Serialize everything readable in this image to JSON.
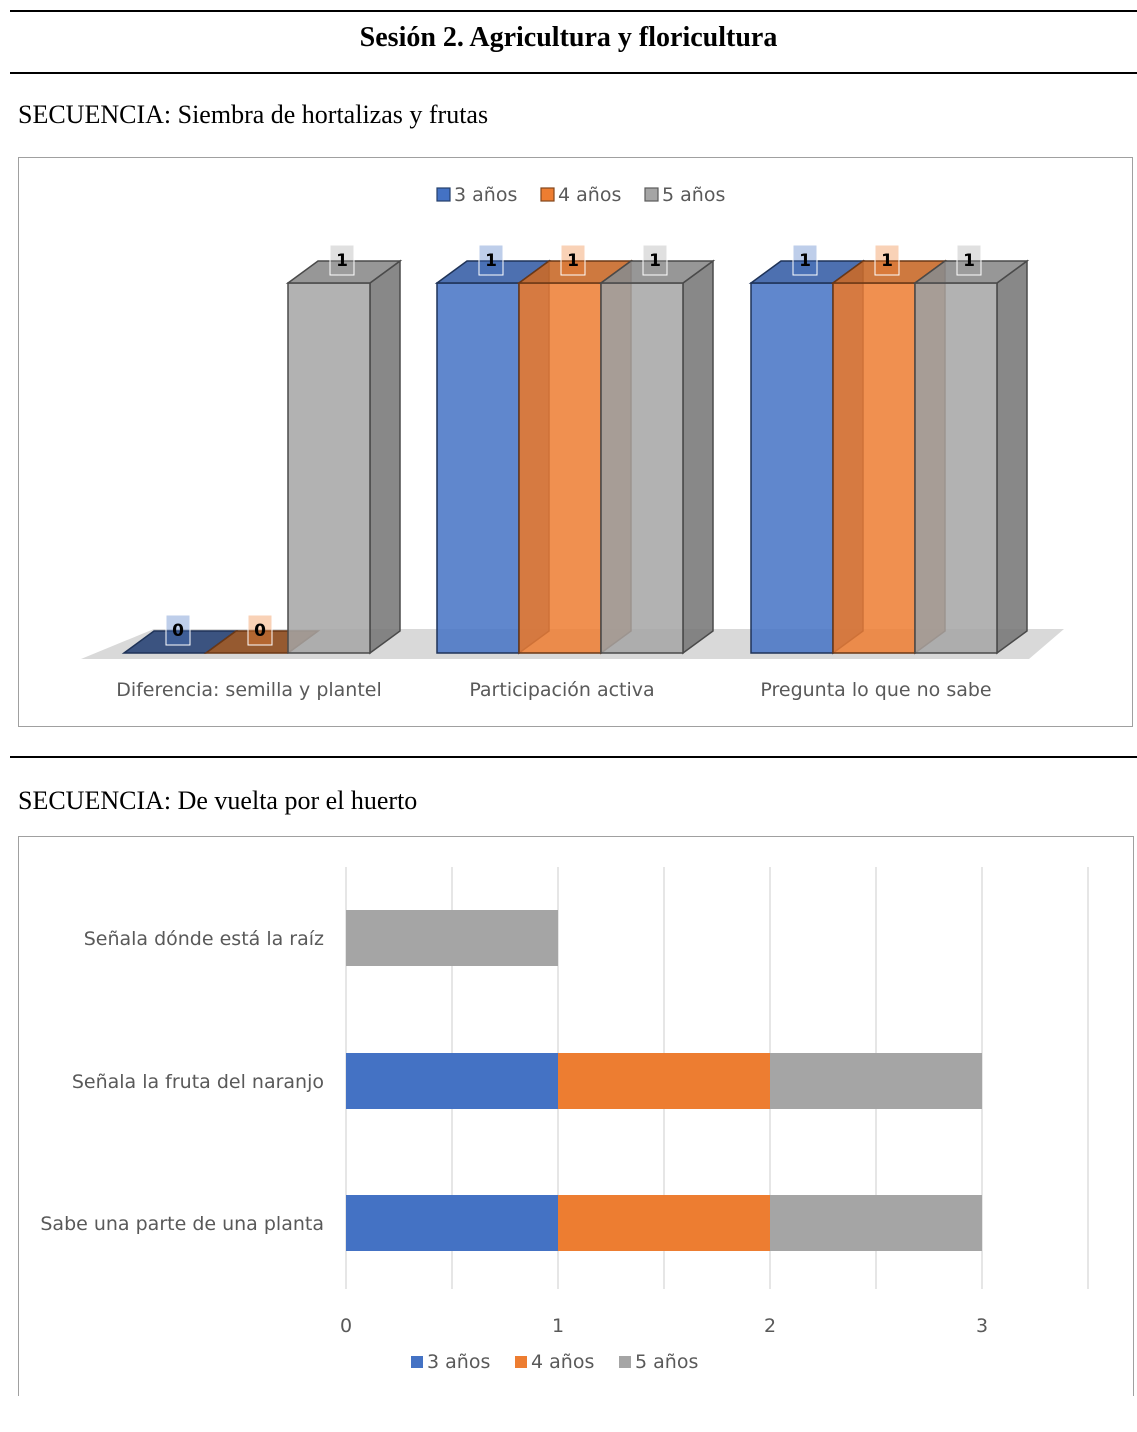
{
  "page": {
    "title": "Sesión 2. Agricultura y floricultura",
    "section1_label": "SECUENCIA: Siembra de hortalizas y frutas",
    "section2_label": "SECUENCIA: De vuelta por el huerto"
  },
  "chart_data": [
    {
      "type": "bar",
      "variant": "3d-clustered-column",
      "title": "",
      "categories": [
        "Diferencia: semilla y plantel",
        "Participación activa",
        "Pregunta lo que no sabe"
      ],
      "series": [
        {
          "name": "3 años",
          "values": [
            0,
            1,
            1
          ],
          "color": "#4472c4"
        },
        {
          "name": "4 años",
          "values": [
            0,
            1,
            1
          ],
          "color": "#ed7d31"
        },
        {
          "name": "5 años",
          "values": [
            1,
            1,
            1
          ],
          "color": "#a5a5a5"
        }
      ],
      "ylim": [
        0,
        1
      ],
      "data_labels": true,
      "legend_position": "top"
    },
    {
      "type": "bar",
      "variant": "horizontal-stacked",
      "title": "",
      "categories": [
        "Señala dónde está la raíz",
        "Señala la fruta del naranjo",
        "Sabe una parte de una planta"
      ],
      "series": [
        {
          "name": "3 años",
          "values": [
            0,
            1,
            1
          ],
          "color": "#4472c4"
        },
        {
          "name": "4 años",
          "values": [
            0,
            1,
            1
          ],
          "color": "#ed7d31"
        },
        {
          "name": "5 años",
          "values": [
            1,
            1,
            1
          ],
          "color": "#a5a5a5"
        }
      ],
      "xlim": [
        0,
        3.5
      ],
      "x_ticks": [
        0,
        1,
        2,
        3
      ],
      "grid": true,
      "legend_position": "bottom"
    }
  ]
}
